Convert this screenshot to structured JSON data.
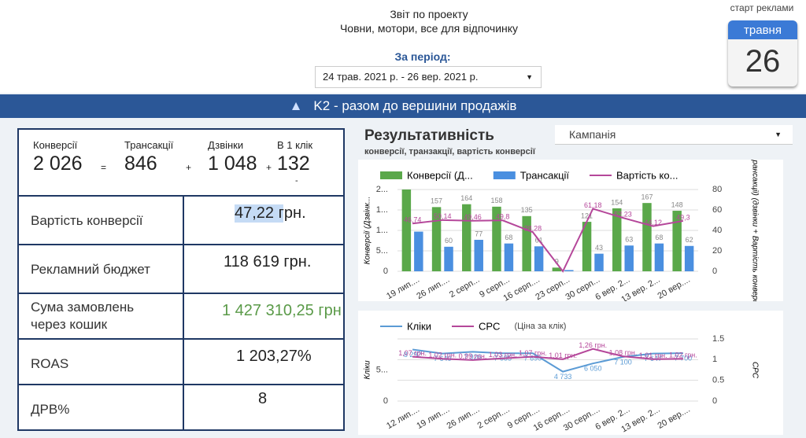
{
  "header": {
    "title": "Звіт по проекту",
    "subtitle": "Човни, мотори, все для відпочинку",
    "period_label": "За період:",
    "period": "24 трав. 2021 р. - 26 вер. 2021 р."
  },
  "calendar": {
    "label": "старт реклами",
    "month": "травня",
    "day": "26"
  },
  "banner": "K2 - разом до вершини продажів",
  "kpi": {
    "items": [
      {
        "label": "Конверсії",
        "value": "2 026"
      },
      {
        "label": "Трансакції",
        "value": "846"
      },
      {
        "label": "Дзвінки",
        "value": "1 048"
      },
      {
        "label": "В 1 клік",
        "value": "132"
      }
    ],
    "operators": [
      "=",
      "+",
      "+"
    ],
    "note": "-"
  },
  "metrics": [
    {
      "label": "Вартість конверсії",
      "value": "47,22 грн."
    },
    {
      "label": "Рекламний бюджет",
      "value": "118 619 грн."
    },
    {
      "label": "Сума  замовлень через кошик",
      "value": "1 427 310,25 грн"
    },
    {
      "label": "ROAS",
      "value": "1 203,27%"
    },
    {
      "label": "ДРВ%",
      "value": "8"
    }
  ],
  "section": {
    "title": "Результативність",
    "subtitle": "конверсії, транзакції, вартість конверсії",
    "filter": "Кампанія"
  },
  "chart_data": [
    {
      "type": "combo",
      "categories": [
        "19 лип....",
        "26 лип....",
        "2 серп...",
        "9 серп...",
        "16 серп....",
        "23 серп...",
        "30 серп...",
        "6 вер. 2...",
        "13 вер. 2...",
        "20 вер...."
      ],
      "y_label": "Конверсії (Дзвінк...",
      "y2_label": "трансакції) (дзвінки + Вартість конверсії",
      "ylim": [
        0,
        200
      ],
      "yticks": [
        0,
        {
          "value": 50,
          "label": "5..."
        },
        {
          "value": 100,
          "label": "1..."
        },
        {
          "value": 150,
          "label": "1..."
        },
        {
          "value": 200,
          "label": "2..."
        }
      ],
      "y2lim": [
        0,
        80
      ],
      "y2ticks": [
        0,
        20,
        40,
        60,
        80
      ],
      "grid": true,
      "series": [
        {
          "name": "Конверсії (Д...",
          "color": "#5aa84a",
          "values": [
            200,
            157,
            164,
            158,
            135,
            9,
            121,
            154,
            167,
            148
          ],
          "value_labels": [
            null,
            "157",
            "164",
            "158",
            "135",
            "9",
            "121",
            "154",
            "167",
            "148"
          ]
        },
        {
          "name": "Трансакції",
          "color": "#4a8fe0",
          "values": [
            97,
            60,
            77,
            68,
            61,
            3,
            43,
            63,
            68,
            62
          ],
          "value_labels": [
            null,
            "60",
            "77",
            "68",
            "61",
            null,
            "43",
            "63",
            "68",
            "62"
          ]
        },
        {
          "name": "Вартість ко...",
          "color": "#b5479a",
          "axis": "y2",
          "values": [
            46.74,
            50.14,
            49.46,
            49.8,
            38.28,
            0,
            61.18,
            52.23,
            44.12,
            49.3
          ],
          "value_labels": [
            "46,74",
            "50,14",
            "49,46",
            "49,8",
            "38,28",
            null,
            "61,18",
            "52,23",
            "44,12",
            "49,3"
          ]
        }
      ]
    },
    {
      "type": "line",
      "categories": [
        "12 лип....",
        "19 лип....",
        "26 лип....",
        "2 серп....",
        "9 серп....",
        "16 серп....",
        "30 серп....",
        "6 вер. 2...",
        "13 вер. 2...",
        "20 вер...."
      ],
      "y_label": "Кліки",
      "y2_label": "CPC",
      "annotation": "(Ціна за клік)",
      "ylim": [
        0,
        10000
      ],
      "yticks": [
        0,
        {
          "value": 5000,
          "label": "5..."
        }
      ],
      "y2lim": [
        0,
        1.5
      ],
      "y2ticks": [
        0,
        0.5,
        1,
        1.5
      ],
      "grid": true,
      "series": [
        {
          "name": "Кліки",
          "color": "#5b9bd5",
          "values": [
            8292,
            7640,
            7926,
            7685,
            7690,
            4733,
            6050,
            7100,
            7647,
            7700
          ],
          "value_labels": [
            "8 292",
            "7 640",
            "7 926",
            "7 685",
            "7 690",
            "4 733",
            "6 050",
            "7 100",
            "7 647",
            "7 700"
          ]
        },
        {
          "name": "CPC",
          "color": "#b5479a",
          "axis": "y2",
          "values": [
            1.07,
            1.02,
            0.99,
            1.03,
            1.07,
            1.01,
            1.26,
            1.08,
            1.01,
            1.02
          ],
          "value_labels": [
            "1,07 грн.",
            "1,02 грн.",
            "0,99 грн.",
            "1,03 грн.",
            "1,07 грн.",
            "1,01 грн.",
            "1,26 грн.",
            "1,08 грн.",
            "1,01 грн.",
            "1,02 грн."
          ]
        }
      ]
    }
  ]
}
